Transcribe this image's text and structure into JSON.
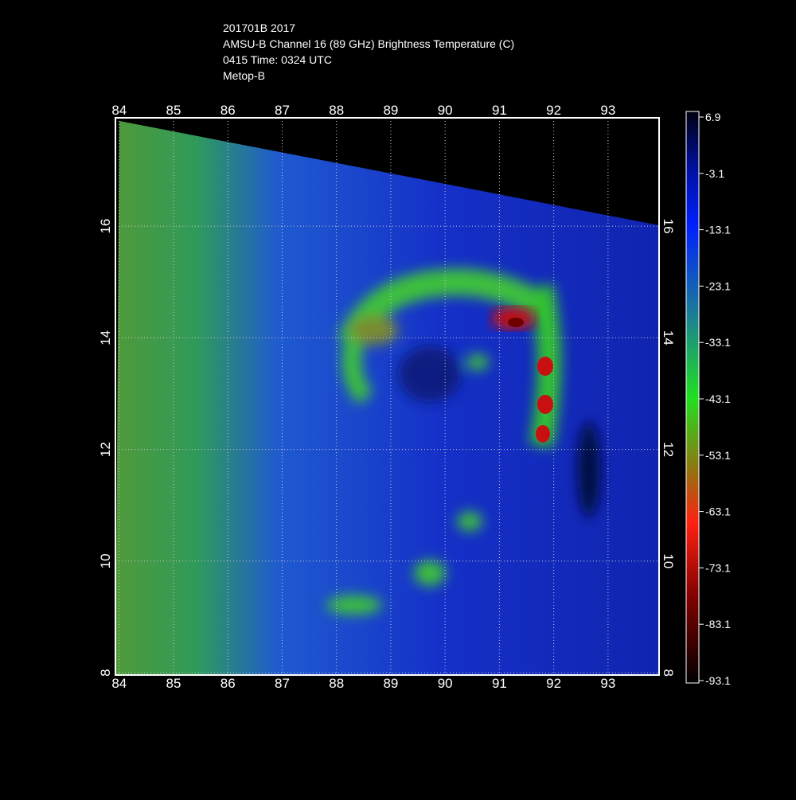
{
  "header": {
    "lines": [
      "201701B 2017",
      "AMSU-B Channel 16 (89 GHz) Brightness Temperature (C)",
      "0415 Time: 0324 UTC",
      "Metop-B"
    ]
  },
  "map": {
    "lon_range": [
      83.93,
      93.94
    ],
    "lat_range": [
      7.96,
      17.94
    ],
    "lon_ticks": [
      84,
      85,
      86,
      87,
      88,
      89,
      90,
      91,
      92,
      93
    ],
    "lat_ticks": [
      8,
      10,
      12,
      14,
      16
    ]
  },
  "colorbar": {
    "range": [
      -93.1,
      6.9
    ],
    "ticks": [
      6.9,
      -3.1,
      -13.1,
      -23.1,
      -33.1,
      -43.1,
      -53.1,
      -63.1,
      -73.1,
      -83.1,
      -93.1
    ]
  }
}
